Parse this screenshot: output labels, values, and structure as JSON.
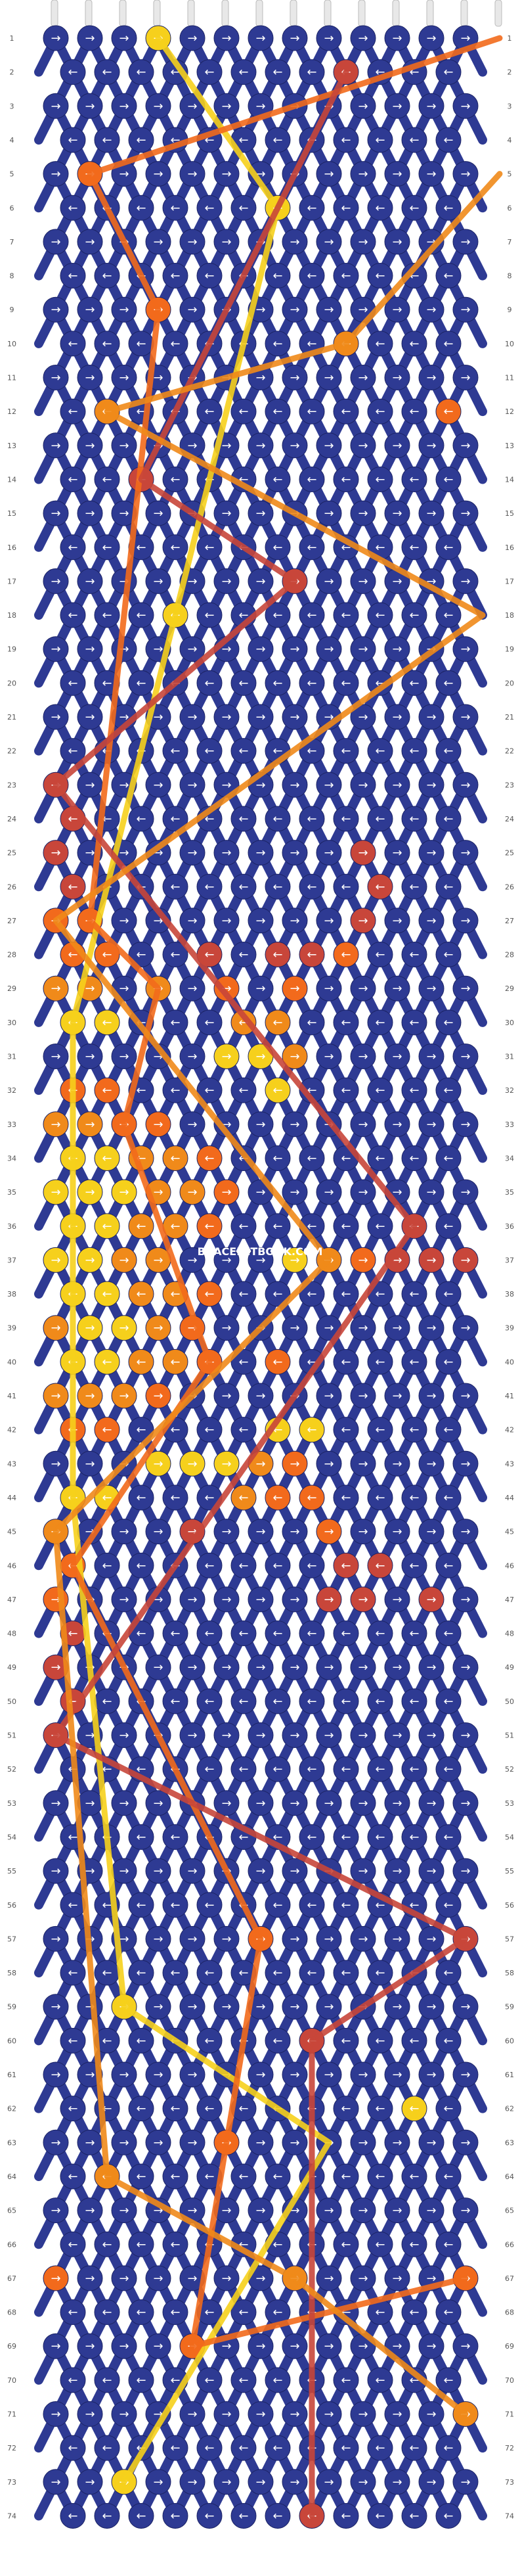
{
  "site_watermark": "BRACELETBOOK.COM",
  "colors": {
    "background_strand": "#2e3a93",
    "strand_1": "#f6d01c",
    "strand_2": "#f08a1a",
    "strand_3": "#f26a1c",
    "strand_4": "#c8463a",
    "arrow": "#ffffff",
    "row_label": "#555555"
  },
  "pattern": {
    "rows": 74,
    "knots_per_odd_row": 13,
    "knots_per_even_row": 12
  },
  "row_labels": [
    "1",
    "2",
    "3",
    "4",
    "5",
    "6",
    "7",
    "8",
    "9",
    "10",
    "11",
    "12",
    "13",
    "14",
    "15",
    "16",
    "17",
    "18",
    "19",
    "20",
    "21",
    "22",
    "23",
    "24",
    "25",
    "26",
    "27",
    "28",
    "29",
    "30",
    "31",
    "32",
    "33",
    "34",
    "35",
    "36",
    "37",
    "38",
    "39",
    "40",
    "41",
    "42",
    "43",
    "44",
    "45",
    "46",
    "47",
    "48",
    "49",
    "50",
    "51",
    "52",
    "53",
    "54",
    "55",
    "56",
    "57",
    "58",
    "59",
    "60",
    "61",
    "62",
    "63",
    "64",
    "65",
    "66",
    "67",
    "68",
    "69",
    "70",
    "71",
    "72",
    "73",
    "74"
  ],
  "highlight_knots": [
    {
      "row": 1,
      "col": 3,
      "color": "strand_1"
    },
    {
      "row": 1,
      "col": 13,
      "color": "strand_3"
    },
    {
      "row": 2,
      "col": 8,
      "color": "strand_4"
    },
    {
      "row": 5,
      "col": 1,
      "color": "strand_3"
    },
    {
      "row": 5,
      "col": 13,
      "color": "strand_2"
    },
    {
      "row": 6,
      "col": 6,
      "color": "strand_1"
    },
    {
      "row": 9,
      "col": 3,
      "color": "strand_3"
    },
    {
      "row": 10,
      "col": 8,
      "color": "strand_2"
    },
    {
      "row": 12,
      "col": 1,
      "color": "strand_2"
    },
    {
      "row": 12,
      "col": 11,
      "color": "strand_3"
    },
    {
      "row": 14,
      "col": 2,
      "color": "strand_4"
    },
    {
      "row": 17,
      "col": 7,
      "color": "strand_4"
    },
    {
      "row": 18,
      "col": 3,
      "color": "strand_1"
    },
    {
      "row": 18,
      "col": 12,
      "color": "strand_2"
    },
    {
      "row": 23,
      "col": 0,
      "color": "strand_4"
    },
    {
      "row": 24,
      "col": 0,
      "color": "strand_4"
    },
    {
      "row": 25,
      "col": 0,
      "color": "strand_4"
    },
    {
      "row": 25,
      "col": 9,
      "color": "strand_4"
    },
    {
      "row": 26,
      "col": 0,
      "color": "strand_4"
    },
    {
      "row": 26,
      "col": 9,
      "color": "strand_4"
    },
    {
      "row": 27,
      "col": 0,
      "color": "strand_3"
    },
    {
      "row": 27,
      "col": 1,
      "color": "strand_3"
    },
    {
      "row": 27,
      "col": 9,
      "color": "strand_4"
    },
    {
      "row": 28,
      "col": 0,
      "color": "strand_3"
    },
    {
      "row": 28,
      "col": 1,
      "color": "strand_3"
    },
    {
      "row": 28,
      "col": 4,
      "color": "strand_4"
    },
    {
      "row": 28,
      "col": 6,
      "color": "strand_4"
    },
    {
      "row": 28,
      "col": 7,
      "color": "strand_4"
    },
    {
      "row": 28,
      "col": 8,
      "color": "strand_3"
    },
    {
      "row": 29,
      "col": 0,
      "color": "strand_2"
    },
    {
      "row": 29,
      "col": 1,
      "color": "strand_2"
    },
    {
      "row": 29,
      "col": 3,
      "color": "strand_2"
    },
    {
      "row": 29,
      "col": 5,
      "color": "strand_3"
    },
    {
      "row": 29,
      "col": 7,
      "color": "strand_3"
    },
    {
      "row": 30,
      "col": 0,
      "color": "strand_1"
    },
    {
      "row": 30,
      "col": 1,
      "color": "strand_1"
    },
    {
      "row": 30,
      "col": 5,
      "color": "strand_2"
    },
    {
      "row": 30,
      "col": 6,
      "color": "strand_2"
    },
    {
      "row": 31,
      "col": 5,
      "color": "strand_1"
    },
    {
      "row": 31,
      "col": 6,
      "color": "strand_1"
    },
    {
      "row": 31,
      "col": 7,
      "color": "strand_2"
    },
    {
      "row": 32,
      "col": 0,
      "color": "strand_3"
    },
    {
      "row": 32,
      "col": 1,
      "color": "strand_3"
    },
    {
      "row": 32,
      "col": 6,
      "color": "strand_1"
    },
    {
      "row": 33,
      "col": 0,
      "color": "strand_2"
    },
    {
      "row": 33,
      "col": 1,
      "color": "strand_2"
    },
    {
      "row": 33,
      "col": 2,
      "color": "strand_3"
    },
    {
      "row": 33,
      "col": 3,
      "color": "strand_3"
    },
    {
      "row": 34,
      "col": 0,
      "color": "strand_1"
    },
    {
      "row": 34,
      "col": 1,
      "color": "strand_1"
    },
    {
      "row": 34,
      "col": 2,
      "color": "strand_2"
    },
    {
      "row": 34,
      "col": 3,
      "color": "strand_2"
    },
    {
      "row": 34,
      "col": 4,
      "color": "strand_3"
    },
    {
      "row": 35,
      "col": 0,
      "color": "strand_1"
    },
    {
      "row": 35,
      "col": 1,
      "color": "strand_1"
    },
    {
      "row": 35,
      "col": 2,
      "color": "strand_1"
    },
    {
      "row": 35,
      "col": 3,
      "color": "strand_2"
    },
    {
      "row": 35,
      "col": 4,
      "color": "strand_2"
    },
    {
      "row": 35,
      "col": 5,
      "color": "strand_3"
    },
    {
      "row": 36,
      "col": 0,
      "color": "strand_1"
    },
    {
      "row": 36,
      "col": 1,
      "color": "strand_1"
    },
    {
      "row": 36,
      "col": 2,
      "color": "strand_2"
    },
    {
      "row": 36,
      "col": 3,
      "color": "strand_2"
    },
    {
      "row": 36,
      "col": 4,
      "color": "strand_3"
    },
    {
      "row": 36,
      "col": 10,
      "color": "strand_4"
    },
    {
      "row": 37,
      "col": 0,
      "color": "strand_1"
    },
    {
      "row": 37,
      "col": 1,
      "color": "strand_1"
    },
    {
      "row": 37,
      "col": 2,
      "color": "strand_2"
    },
    {
      "row": 37,
      "col": 3,
      "color": "strand_2"
    },
    {
      "row": 37,
      "col": 7,
      "color": "strand_1"
    },
    {
      "row": 37,
      "col": 8,
      "color": "strand_2"
    },
    {
      "row": 37,
      "col": 9,
      "color": "strand_3"
    },
    {
      "row": 37,
      "col": 10,
      "color": "strand_4"
    },
    {
      "row": 37,
      "col": 11,
      "color": "strand_4"
    },
    {
      "row": 37,
      "col": 12,
      "color": "strand_4"
    },
    {
      "row": 38,
      "col": 0,
      "color": "strand_1"
    },
    {
      "row": 38,
      "col": 1,
      "color": "strand_1"
    },
    {
      "row": 38,
      "col": 2,
      "color": "strand_2"
    },
    {
      "row": 38,
      "col": 3,
      "color": "strand_2"
    },
    {
      "row": 38,
      "col": 4,
      "color": "strand_3"
    },
    {
      "row": 39,
      "col": 0,
      "color": "strand_2"
    },
    {
      "row": 39,
      "col": 1,
      "color": "strand_1"
    },
    {
      "row": 39,
      "col": 2,
      "color": "strand_1"
    },
    {
      "row": 39,
      "col": 3,
      "color": "strand_2"
    },
    {
      "row": 39,
      "col": 4,
      "color": "strand_3"
    },
    {
      "row": 40,
      "col": 0,
      "color": "strand_1"
    },
    {
      "row": 40,
      "col": 1,
      "color": "strand_1"
    },
    {
      "row": 40,
      "col": 2,
      "color": "strand_2"
    },
    {
      "row": 40,
      "col": 3,
      "color": "strand_2"
    },
    {
      "row": 40,
      "col": 4,
      "color": "strand_3"
    },
    {
      "row": 40,
      "col": 6,
      "color": "strand_3"
    },
    {
      "row": 41,
      "col": 0,
      "color": "strand_2"
    },
    {
      "row": 41,
      "col": 1,
      "color": "strand_2"
    },
    {
      "row": 41,
      "col": 2,
      "color": "strand_2"
    },
    {
      "row": 41,
      "col": 3,
      "color": "strand_3"
    },
    {
      "row": 42,
      "col": 0,
      "color": "strand_3"
    },
    {
      "row": 42,
      "col": 1,
      "color": "strand_3"
    },
    {
      "row": 42,
      "col": 6,
      "color": "strand_1"
    },
    {
      "row": 42,
      "col": 7,
      "color": "strand_1"
    },
    {
      "row": 43,
      "col": 3,
      "color": "strand_1"
    },
    {
      "row": 43,
      "col": 4,
      "color": "strand_1"
    },
    {
      "row": 43,
      "col": 5,
      "color": "strand_1"
    },
    {
      "row": 43,
      "col": 6,
      "color": "strand_2"
    },
    {
      "row": 43,
      "col": 7,
      "color": "strand_3"
    },
    {
      "row": 44,
      "col": 0,
      "color": "strand_1"
    },
    {
      "row": 44,
      "col": 1,
      "color": "strand_1"
    },
    {
      "row": 44,
      "col": 5,
      "color": "strand_2"
    },
    {
      "row": 44,
      "col": 6,
      "color": "strand_3"
    },
    {
      "row": 44,
      "col": 7,
      "color": "strand_3"
    },
    {
      "row": 45,
      "col": 0,
      "color": "strand_2"
    },
    {
      "row": 45,
      "col": 4,
      "color": "strand_4"
    },
    {
      "row": 45,
      "col": 8,
      "color": "strand_3"
    },
    {
      "row": 46,
      "col": 0,
      "color": "strand_3"
    },
    {
      "row": 46,
      "col": 8,
      "color": "strand_4"
    },
    {
      "row": 46,
      "col": 9,
      "color": "strand_4"
    },
    {
      "row": 47,
      "col": 0,
      "color": "strand_3"
    },
    {
      "row": 47,
      "col": 8,
      "color": "strand_4"
    },
    {
      "row": 47,
      "col": 9,
      "color": "strand_4"
    },
    {
      "row": 47,
      "col": 11,
      "color": "strand_4"
    },
    {
      "row": 48,
      "col": 0,
      "color": "strand_4"
    },
    {
      "row": 49,
      "col": 0,
      "color": "strand_4"
    },
    {
      "row": 50,
      "col": 0,
      "color": "strand_4"
    },
    {
      "row": 51,
      "col": 0,
      "color": "strand_4"
    },
    {
      "row": 57,
      "col": 6,
      "color": "strand_3"
    },
    {
      "row": 57,
      "col": 12,
      "color": "strand_4"
    },
    {
      "row": 59,
      "col": 2,
      "color": "strand_1"
    },
    {
      "row": 60,
      "col": 7,
      "color": "strand_4"
    },
    {
      "row": 62,
      "col": 10,
      "color": "strand_1"
    },
    {
      "row": 63,
      "col": 5,
      "color": "strand_3"
    },
    {
      "row": 64,
      "col": 1,
      "color": "strand_2"
    },
    {
      "row": 67,
      "col": 0,
      "color": "strand_3"
    },
    {
      "row": 67,
      "col": 7,
      "color": "strand_2"
    },
    {
      "row": 67,
      "col": 12,
      "color": "strand_3"
    },
    {
      "row": 69,
      "col": 4,
      "color": "strand_3"
    },
    {
      "row": 71,
      "col": 12,
      "color": "strand_2"
    },
    {
      "row": 73,
      "col": 2,
      "color": "strand_1"
    },
    {
      "row": 74,
      "col": 7,
      "color": "strand_4"
    }
  ],
  "strand_paths": [
    {
      "color": "strand_1",
      "points": [
        [
          1,
          3
        ],
        [
          6,
          6
        ],
        [
          18,
          3
        ],
        [
          30,
          0
        ],
        [
          44,
          0
        ],
        [
          59,
          2
        ],
        [
          63,
          8
        ],
        [
          73,
          2
        ]
      ]
    },
    {
      "color": "strand_3",
      "points": [
        [
          1,
          13
        ],
        [
          5,
          1
        ],
        [
          9,
          3
        ],
        [
          27,
          1
        ],
        [
          29,
          3
        ],
        [
          33,
          2
        ],
        [
          40,
          4
        ],
        [
          46,
          0
        ],
        [
          57,
          6
        ],
        [
          69,
          4
        ],
        [
          67,
          12
        ]
      ]
    },
    {
      "color": "strand_4",
      "points": [
        [
          2,
          8
        ],
        [
          14,
          2
        ],
        [
          17,
          7
        ],
        [
          23,
          0
        ],
        [
          36,
          10
        ],
        [
          51,
          0
        ],
        [
          57,
          12
        ],
        [
          60,
          7
        ],
        [
          74,
          7
        ]
      ]
    },
    {
      "color": "strand_2",
      "points": [
        [
          5,
          13
        ],
        [
          10,
          8
        ],
        [
          12,
          1
        ],
        [
          18,
          12
        ],
        [
          27,
          0
        ],
        [
          37,
          8
        ],
        [
          45,
          0
        ],
        [
          64,
          1
        ],
        [
          67,
          7
        ],
        [
          71,
          12
        ]
      ]
    }
  ]
}
